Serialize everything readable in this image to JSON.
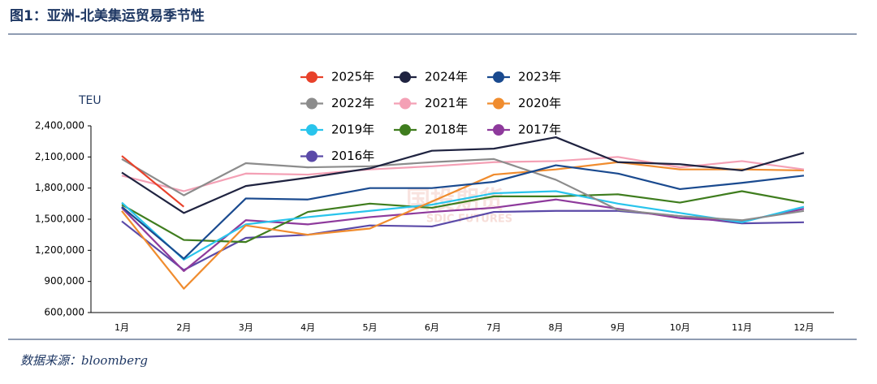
{
  "chart_data": {
    "type": "line",
    "title": "图1：亚洲-北美集运贸易季节性",
    "ylabel": "TEU",
    "source": "数据来源：bloomberg",
    "watermark": [
      "国投期货",
      "SDIC FUTURES"
    ],
    "categories": [
      "1月",
      "2月",
      "3月",
      "4月",
      "5月",
      "6月",
      "7月",
      "8月",
      "9月",
      "10月",
      "11月",
      "12月"
    ],
    "ylim": [
      600000,
      2400000
    ],
    "yticks": [
      {
        "value": 600000,
        "label": "600,000"
      },
      {
        "value": 900000,
        "label": "900,000"
      },
      {
        "value": 1200000,
        "label": "1,200,000"
      },
      {
        "value": 1500000,
        "label": "1,500,000"
      },
      {
        "value": 1800000,
        "label": "1,800,000"
      },
      {
        "value": 2100000,
        "label": "2,100,000"
      },
      {
        "value": 2400000,
        "label": "2,400,000"
      }
    ],
    "legend": "top",
    "series": [
      {
        "name": "2025年",
        "color": "#e8412a",
        "values": [
          2110000,
          1620000,
          null,
          null,
          null,
          null,
          null,
          null,
          null,
          null,
          null,
          null
        ]
      },
      {
        "name": "2024年",
        "color": "#1f2340",
        "values": [
          1950000,
          1560000,
          1820000,
          1900000,
          1990000,
          2160000,
          2180000,
          2290000,
          2050000,
          2030000,
          1970000,
          2140000
        ]
      },
      {
        "name": "2023年",
        "color": "#1a4a8f",
        "values": [
          1620000,
          1120000,
          1700000,
          1690000,
          1800000,
          1800000,
          1860000,
          2020000,
          1940000,
          1790000,
          1850000,
          1920000
        ]
      },
      {
        "name": "2022年",
        "color": "#8c8c8c",
        "values": [
          2080000,
          1730000,
          2040000,
          2000000,
          2010000,
          2050000,
          2080000,
          1880000,
          1590000,
          1530000,
          1490000,
          1580000
        ]
      },
      {
        "name": "2021年",
        "color": "#f4a0b5",
        "values": [
          1920000,
          1770000,
          1940000,
          1930000,
          1980000,
          2010000,
          2050000,
          2060000,
          2100000,
          2000000,
          2060000,
          1980000
        ]
      },
      {
        "name": "2020年",
        "color": "#f08c2e",
        "values": [
          1580000,
          830000,
          1440000,
          1350000,
          1410000,
          1670000,
          1930000,
          1980000,
          2050000,
          1980000,
          1980000,
          1970000
        ]
      },
      {
        "name": "2019年",
        "color": "#29c4ec",
        "values": [
          1660000,
          1110000,
          1450000,
          1520000,
          1580000,
          1640000,
          1750000,
          1770000,
          1650000,
          1560000,
          1470000,
          1620000
        ]
      },
      {
        "name": "2018年",
        "color": "#3f7d1e",
        "values": [
          1640000,
          1300000,
          1280000,
          1570000,
          1650000,
          1610000,
          1720000,
          1720000,
          1740000,
          1660000,
          1770000,
          1660000
        ]
      },
      {
        "name": "2017年",
        "color": "#8e3a9c",
        "values": [
          1610000,
          1000000,
          1490000,
          1450000,
          1520000,
          1570000,
          1610000,
          1690000,
          1600000,
          1510000,
          1480000,
          1600000
        ]
      },
      {
        "name": "2016年",
        "color": "#5b4aa8",
        "values": [
          1480000,
          1010000,
          1320000,
          1350000,
          1440000,
          1430000,
          1570000,
          1580000,
          1580000,
          1530000,
          1460000,
          1470000
        ]
      }
    ]
  }
}
